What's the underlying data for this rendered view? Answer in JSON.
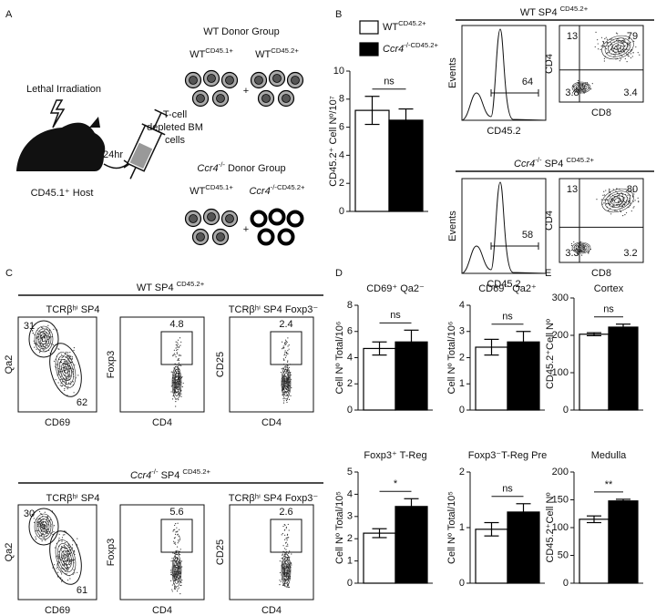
{
  "panel_labels": [
    "A",
    "B",
    "C",
    "D",
    "E"
  ],
  "panel_a": {
    "wt_group": {
      "title": "WT Donor Group",
      "left": [
        {
          "text": "WT"
        },
        {
          "text": "CD45.1+",
          "sup": true
        }
      ],
      "plus": "+",
      "right": [
        {
          "text": "WT"
        },
        {
          "text": "CD45.2+",
          "sup": true
        }
      ]
    },
    "ko_group": {
      "title": [
        {
          "text": "Ccr4",
          "italic": true
        },
        {
          "text": "-/-",
          "sup": true
        },
        {
          "text": " Donor Group"
        }
      ],
      "left": [
        {
          "text": "WT"
        },
        {
          "text": "CD45.1+",
          "sup": true
        }
      ],
      "plus": "+",
      "right": [
        {
          "text": "Ccr4",
          "italic": true
        },
        {
          "text": "-/-CD45.2+",
          "sup": true
        }
      ]
    },
    "irradiation": "Lethal Irradiation",
    "time": "24hr",
    "cells": [
      "T-cell",
      "depleted BM",
      "cells"
    ],
    "host": "CD45.1⁺ Host"
  },
  "chart_data": [
    {
      "type": "bar",
      "y_label": "CD45.2⁺ Cell Nº/10⁷",
      "categories": [
        null
      ],
      "series": [
        {
          "name": [
            {
              "text": "WT"
            },
            {
              "text": "CD45.2+",
              "sup": true
            }
          ],
          "color": "#ffffff",
          "values": [
            7.2
          ],
          "errors": [
            1.0
          ]
        },
        {
          "name": [
            {
              "text": "Ccr4",
              "italic": true
            },
            {
              "text": "-/-CD45.2+",
              "sup": true
            }
          ],
          "color": "#000000",
          "values": [
            6.5
          ],
          "errors": [
            0.8
          ]
        }
      ],
      "ylim": [
        0,
        10
      ],
      "yticks": [
        0,
        2,
        4,
        6,
        8,
        10
      ],
      "annotation": "ns"
    },
    {
      "type": "bar",
      "title": "CD69⁺ Qa2⁻",
      "y_label": "Cell Nº Total/10⁶",
      "categories": [
        null
      ],
      "series": [
        {
          "color": "#ffffff",
          "values": [
            4.7
          ],
          "errors": [
            0.5
          ]
        },
        {
          "color": "#000000",
          "values": [
            5.2
          ],
          "errors": [
            0.9
          ]
        }
      ],
      "ylim": [
        0,
        8
      ],
      "yticks": [
        0,
        2,
        4,
        6,
        8
      ],
      "annotation": "ns"
    },
    {
      "type": "bar",
      "title": "CD69⁻ Qa2⁺",
      "y_label": "Cell Nº Total/10⁶",
      "categories": [
        null
      ],
      "series": [
        {
          "color": "#ffffff",
          "values": [
            2.4
          ],
          "errors": [
            0.3
          ]
        },
        {
          "color": "#000000",
          "values": [
            2.6
          ],
          "errors": [
            0.4
          ]
        }
      ],
      "ylim": [
        0,
        4
      ],
      "yticks": [
        0,
        1,
        2,
        3,
        4
      ],
      "annotation": "ns"
    },
    {
      "type": "bar",
      "title": "Foxp3⁺ T-Reg",
      "y_label": "Cell Nº Total/10⁵",
      "categories": [
        null
      ],
      "series": [
        {
          "color": "#ffffff",
          "values": [
            2.25
          ],
          "errors": [
            0.2
          ]
        },
        {
          "color": "#000000",
          "values": [
            3.45
          ],
          "errors": [
            0.35
          ]
        }
      ],
      "ylim": [
        0,
        5
      ],
      "yticks": [
        0,
        1,
        2,
        3,
        4,
        5
      ],
      "annotation": "*"
    },
    {
      "type": "bar",
      "title": "Foxp3⁻T-Reg Pre",
      "y_label": "Cell Nº Total/10⁵",
      "categories": [
        null
      ],
      "series": [
        {
          "color": "#ffffff",
          "values": [
            0.97
          ],
          "errors": [
            0.12
          ]
        },
        {
          "color": "#000000",
          "values": [
            1.28
          ],
          "errors": [
            0.15
          ]
        }
      ],
      "ylim": [
        0,
        2
      ],
      "yticks": [
        0,
        1,
        2
      ],
      "annotation": "ns"
    },
    {
      "type": "bar",
      "title": "Cortex",
      "y_label": "CD45.2⁺Cell Nº",
      "categories": [
        null
      ],
      "series": [
        {
          "color": "#ffffff",
          "values": [
            203
          ],
          "errors": [
            4
          ]
        },
        {
          "color": "#000000",
          "values": [
            222
          ],
          "errors": [
            8
          ]
        }
      ],
      "ylim": [
        0,
        300
      ],
      "yticks": [
        0,
        100,
        200,
        300
      ],
      "annotation": "ns"
    },
    {
      "type": "bar",
      "title": "Medulla",
      "y_label": "CD45.2⁺Cell Nº",
      "categories": [
        null
      ],
      "series": [
        {
          "color": "#ffffff",
          "values": [
            115
          ],
          "errors": [
            6
          ]
        },
        {
          "color": "#000000",
          "values": [
            148
          ],
          "errors": [
            3
          ]
        }
      ],
      "ylim": [
        0,
        200
      ],
      "yticks": [
        0,
        50,
        100,
        150,
        200
      ],
      "annotation": "**"
    }
  ],
  "panel_b_flow": [
    {
      "header": [
        {
          "text": "WT SP4 "
        },
        {
          "text": "CD45.2+",
          "sup": true
        }
      ],
      "histogram": {
        "y_label": "Events",
        "x_label": "CD45.2",
        "gate": 64
      },
      "quadrant": {
        "y_label": "CD4",
        "x_label": "CD8",
        "values": [
          13,
          79,
          3.8,
          3.4
        ]
      }
    },
    {
      "header": [
        {
          "text": "Ccr4",
          "italic": true
        },
        {
          "text": "-/-",
          "sup": true
        },
        {
          "text": " SP4 "
        },
        {
          "text": "CD45.2+",
          "sup": true
        }
      ],
      "histogram": {
        "y_label": "Events",
        "x_label": "CD45.2",
        "gate": 58
      },
      "quadrant": {
        "y_label": "CD4",
        "x_label": "CD8",
        "values": [
          13,
          80,
          3.3,
          3.2
        ]
      }
    }
  ],
  "panel_c_flow": [
    {
      "header": [
        {
          "text": "WT SP4 "
        },
        {
          "text": "CD45.2+",
          "sup": true
        }
      ],
      "subtitles": [
        "TCRβʰⁱ SP4",
        "TCRβʰⁱ SP4 Foxp3⁻"
      ],
      "plots": [
        {
          "y_label": "Qa2",
          "x_label": "CD69",
          "gates": [
            31,
            62
          ]
        },
        {
          "y_label": "Foxp3",
          "x_label": "CD4",
          "gates": [
            4.8
          ]
        },
        {
          "y_label": "CD25",
          "x_label": "CD4",
          "gates": [
            2.4
          ]
        }
      ]
    },
    {
      "header": [
        {
          "text": "Ccr4",
          "italic": true
        },
        {
          "text": "-/-",
          "sup": true
        },
        {
          "text": " SP4 "
        },
        {
          "text": "CD45.2+",
          "sup": true
        }
      ],
      "subtitles": [
        "TCRβʰⁱ SP4",
        "TCRβʰⁱ SP4 Foxp3⁻"
      ],
      "plots": [
        {
          "y_label": "Qa2",
          "x_label": "CD69",
          "gates": [
            30,
            61
          ]
        },
        {
          "y_label": "Foxp3",
          "x_label": "CD4",
          "gates": [
            5.6
          ]
        },
        {
          "y_label": "CD25",
          "x_label": "CD4",
          "gates": [
            2.6
          ]
        }
      ]
    }
  ]
}
